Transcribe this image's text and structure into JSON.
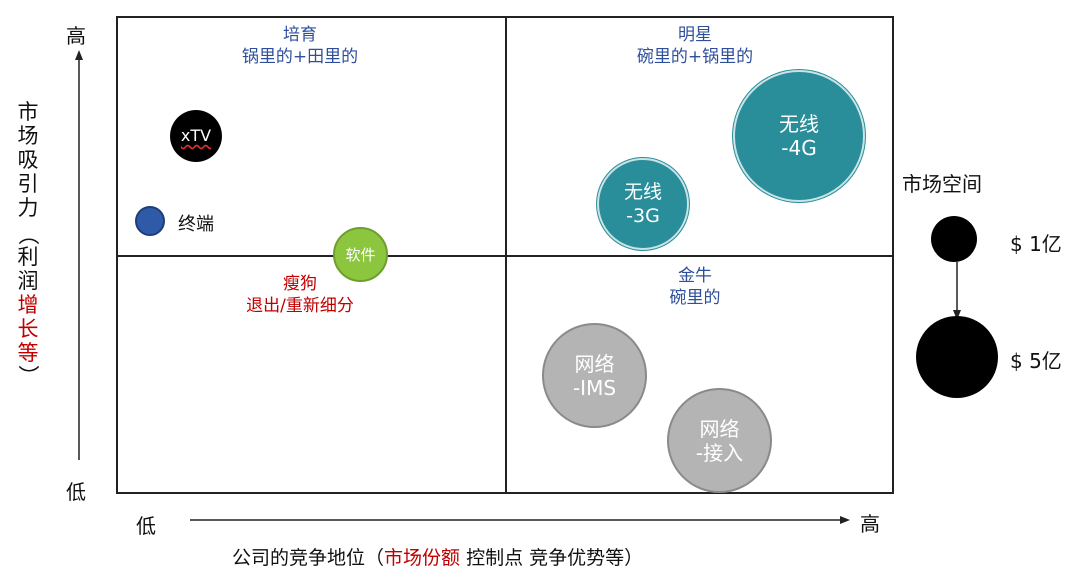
{
  "y_axis": {
    "high": "高",
    "low": "低",
    "label_main": "市场吸引力",
    "label_paren_open": "（",
    "label_normal": "利润",
    "label_red": "增长等",
    "label_paren_close": "）"
  },
  "x_axis": {
    "high": "高",
    "low": "低",
    "label_prefix": "公司的竞争地位（",
    "label_red": "市场份额",
    "label_suffix": " 控制点 竞争优势等）"
  },
  "quadrants": {
    "top_left": {
      "line1": "培育",
      "line2": "锅里的+田里的"
    },
    "top_right": {
      "line1": "明星",
      "line2": "碗里的+锅里的"
    },
    "bottom_left": {
      "line1": "瘦狗",
      "line2": "退出/重新细分"
    },
    "bottom_right": {
      "line1": "金牛",
      "line2": "碗里的"
    }
  },
  "items": {
    "xtv": "xTV",
    "terminal": "终端",
    "software": "软件",
    "wireless_3g_l1": "无线",
    "wireless_3g_l2": "-3G",
    "wireless_4g_l1": "无线",
    "wireless_4g_l2": "-4G",
    "network_ims_l1": "网络",
    "network_ims_l2": "-IMS",
    "network_access_l1": "网络",
    "network_access_l2": "-接入"
  },
  "legend": {
    "title": "市场空间",
    "small": "$ 1亿",
    "large": "$ 5亿"
  },
  "colors": {
    "teal": "#2a8e9a",
    "grey": "#b4b4b4",
    "green": "#8cc63f",
    "blue": "#2e5aa8",
    "black": "#000000",
    "red": "#c00000",
    "quadrant_title_blue": "#2e4f9c"
  }
}
